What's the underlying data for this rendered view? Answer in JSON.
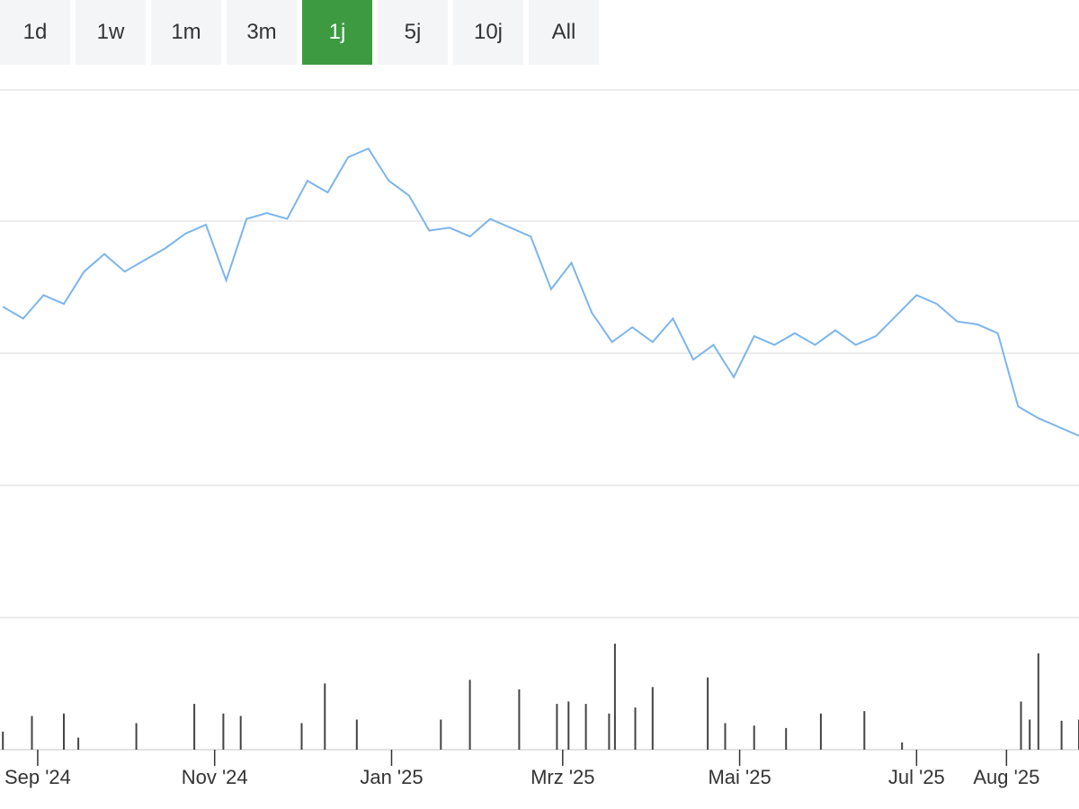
{
  "range_selector": {
    "buttons": [
      {
        "label": "1d",
        "active": false
      },
      {
        "label": "1w",
        "active": false
      },
      {
        "label": "1m",
        "active": false
      },
      {
        "label": "3m",
        "active": false
      },
      {
        "label": "1j",
        "active": true
      },
      {
        "label": "5j",
        "active": false
      },
      {
        "label": "10j",
        "active": false
      },
      {
        "label": "All",
        "active": false
      }
    ],
    "active_color": "#3e9a41",
    "inactive_color": "#f4f5f6"
  },
  "chart_data": [
    {
      "type": "line",
      "line_color": "#7cb5ec",
      "grid": true,
      "x": [
        "2024-08-20",
        "2024-08-27",
        "2024-09-03",
        "2024-09-10",
        "2024-09-17",
        "2024-09-24",
        "2024-10-01",
        "2024-10-08",
        "2024-10-15",
        "2024-10-22",
        "2024-10-29",
        "2024-11-05",
        "2024-11-12",
        "2024-11-19",
        "2024-11-26",
        "2024-12-03",
        "2024-12-10",
        "2024-12-17",
        "2024-12-24",
        "2024-12-31",
        "2025-01-07",
        "2025-01-14",
        "2025-01-21",
        "2025-01-28",
        "2025-02-04",
        "2025-02-11",
        "2025-02-18",
        "2025-02-25",
        "2025-03-04",
        "2025-03-11",
        "2025-03-18",
        "2025-03-25",
        "2025-04-01",
        "2025-04-08",
        "2025-04-15",
        "2025-04-22",
        "2025-04-29",
        "2025-05-06",
        "2025-05-13",
        "2025-05-20",
        "2025-05-27",
        "2025-06-03",
        "2025-06-10",
        "2025-06-17",
        "2025-06-24",
        "2025-07-01",
        "2025-07-08",
        "2025-07-15",
        "2025-07-22",
        "2025-07-29",
        "2025-08-05",
        "2025-08-12",
        "2025-08-19",
        "2025-08-26"
      ],
      "values": [
        0.46,
        0.42,
        0.5,
        0.47,
        0.58,
        0.64,
        0.58,
        0.62,
        0.66,
        0.71,
        0.74,
        0.55,
        0.76,
        0.78,
        0.76,
        0.89,
        0.85,
        0.97,
        1.0,
        0.89,
        0.84,
        0.72,
        0.73,
        0.7,
        0.76,
        0.73,
        0.7,
        0.52,
        0.61,
        0.44,
        0.34,
        0.39,
        0.34,
        0.42,
        0.28,
        0.33,
        0.22,
        0.36,
        0.33,
        0.37,
        0.33,
        0.38,
        0.33,
        0.36,
        0.43,
        0.5,
        0.47,
        0.41,
        0.4,
        0.37,
        0.12,
        0.08,
        0.05,
        0.02
      ],
      "x_tick_labels": [
        "Sep '24",
        "Nov '24",
        "Jan '25",
        "Mrz '25",
        "Mai '25",
        "Jul '25",
        "Aug '25"
      ],
      "x_tick_dates": [
        "2024-09-01",
        "2024-11-01",
        "2025-01-01",
        "2025-03-01",
        "2025-05-01",
        "2025-07-01",
        "2025-08-01"
      ],
      "xlim": [
        "2024-08-19",
        "2025-08-26"
      ],
      "ylim": [
        -0.6,
        1.2
      ]
    },
    {
      "type": "bar",
      "bar_color": "#444444",
      "x": [
        "2024-08-20",
        "2024-08-30",
        "2024-09-10",
        "2024-09-15",
        "2024-10-05",
        "2024-10-25",
        "2024-11-04",
        "2024-11-10",
        "2024-12-01",
        "2024-12-09",
        "2024-12-20",
        "2025-01-18",
        "2025-01-28",
        "2025-02-14",
        "2025-02-27",
        "2025-03-03",
        "2025-03-09",
        "2025-03-17",
        "2025-03-19",
        "2025-03-26",
        "2025-04-01",
        "2025-04-20",
        "2025-04-26",
        "2025-05-06",
        "2025-05-17",
        "2025-05-29",
        "2025-06-13",
        "2025-06-26",
        "2025-08-06",
        "2025-08-09",
        "2025-08-12",
        "2025-08-20",
        "2025-08-26"
      ],
      "values": [
        0.15,
        0.28,
        0.3,
        0.1,
        0.22,
        0.38,
        0.3,
        0.28,
        0.22,
        0.55,
        0.25,
        0.25,
        0.58,
        0.5,
        0.38,
        0.4,
        0.38,
        0.3,
        0.88,
        0.35,
        0.52,
        0.6,
        0.22,
        0.2,
        0.18,
        0.3,
        0.32,
        0.06,
        0.4,
        0.25,
        0.8,
        0.24,
        0.25
      ]
    }
  ]
}
